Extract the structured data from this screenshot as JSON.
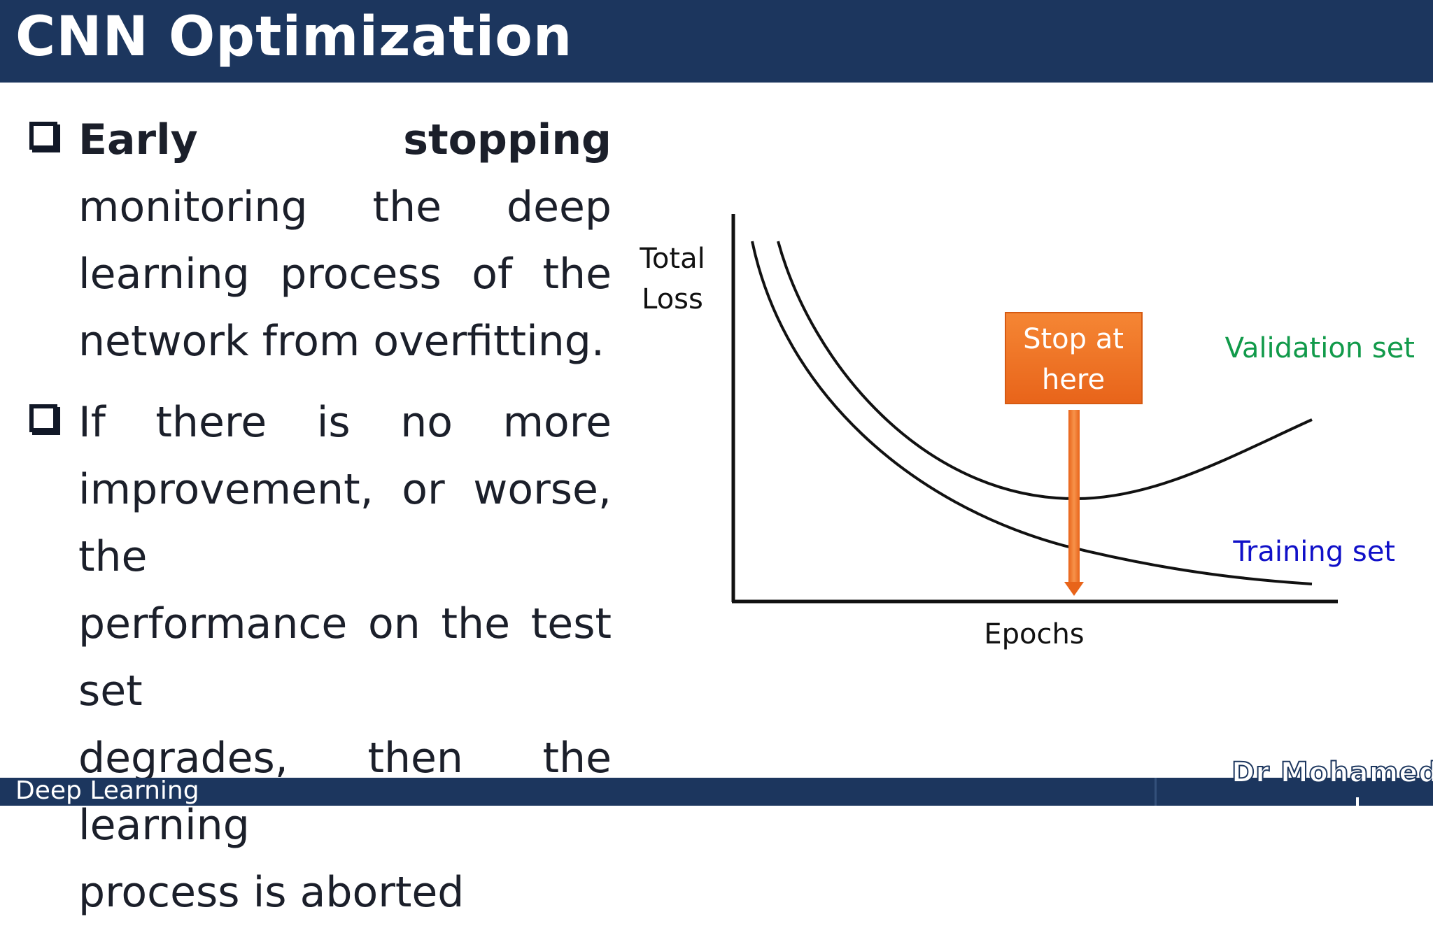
{
  "slide": {
    "title": "CNN Optimization",
    "bullets": [
      {
        "lines": [
          {
            "bold_words": [
              "Early",
              "stopping"
            ]
          },
          {
            "words": [
              "monitoring",
              "the",
              "deep"
            ]
          },
          {
            "words": [
              "learning",
              "process",
              "of",
              "the"
            ]
          },
          {
            "text": "network from overfitting."
          }
        ]
      },
      {
        "lines": [
          {
            "words": [
              "If",
              "there",
              "is",
              "no",
              "more"
            ]
          },
          {
            "text": "improvement, or worse, the"
          },
          {
            "text": "performance on the test set"
          },
          {
            "text": "degrades, then the learning"
          },
          {
            "text": "process is aborted"
          }
        ]
      }
    ]
  },
  "figure": {
    "y_label_line1": "Total",
    "y_label_line2": "Loss",
    "x_label": "Epochs",
    "stop_label_line1": "Stop at",
    "stop_label_line2": "here",
    "validation_label": "Validation set",
    "training_label": "Training set",
    "colors": {
      "validation": "#119a4a",
      "training": "#1010c8",
      "stop_box": "#f07423",
      "curve": "#111111"
    }
  },
  "footer": {
    "course": "Deep Learning",
    "author": "Dr Mohamed"
  }
}
